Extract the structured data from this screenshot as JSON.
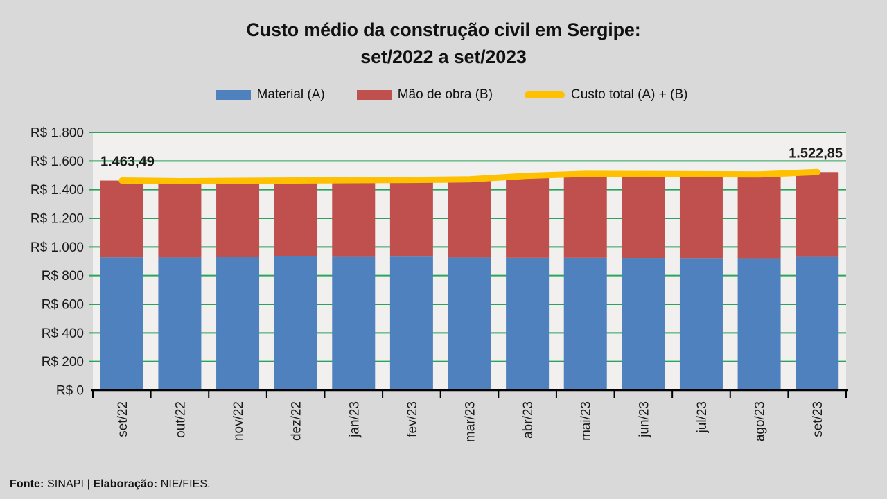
{
  "title": {
    "line1": "Custo médio da construção civil em Sergipe:",
    "line2": "set/2022 a set/2023"
  },
  "legend": [
    {
      "label": "Material (A)",
      "color": "#4E81BD",
      "shape": "rect"
    },
    {
      "label": "Mão de obra (B)",
      "color": "#C0504D",
      "shape": "rect"
    },
    {
      "label": "Custo total (A) + (B)",
      "color": "#FFC000",
      "shape": "line"
    }
  ],
  "footer": {
    "segments": [
      {
        "text": "Fonte: ",
        "bold": true
      },
      {
        "text": "SINAPI | ",
        "bold": false
      },
      {
        "text": "Elaboração: ",
        "bold": true
      },
      {
        "text": "NIE/FIES.",
        "bold": false
      }
    ]
  },
  "colors": {
    "background": "#D9D9D9",
    "plot_background": "#F1F0EE",
    "gridline": "#2BA35C",
    "axis": "#000000",
    "text": "#1A1A1A",
    "material": "#4E81BD",
    "labor": "#C0504D",
    "total_line": "#FFC000"
  },
  "chart_data": {
    "type": "bar",
    "subtype": "stacked-bar-with-line",
    "title": "Custo médio da construção civil em Sergipe: set/2022 a set/2023",
    "categories": [
      "set/22",
      "out/22",
      "nov/22",
      "dez/22",
      "jan/23",
      "fev/23",
      "mar/23",
      "abr/23",
      "mai/23",
      "jun/23",
      "jul/23",
      "ago/23",
      "set/23"
    ],
    "series": [
      {
        "name": "Material (A)",
        "type": "bar",
        "color": "#4E81BD",
        "values": [
          928,
          927,
          929,
          936,
          931,
          933,
          927,
          925,
          925,
          924,
          923,
          922,
          931
        ]
      },
      {
        "name": "Mão de obra (B)",
        "type": "bar",
        "color": "#C0504D",
        "values": [
          535.49,
          532,
          532,
          528,
          535,
          535,
          545,
          572,
          585,
          585,
          585,
          584,
          591.85
        ]
      },
      {
        "name": "Custo total (A) + (B)",
        "type": "line",
        "color": "#FFC000",
        "values": [
          1463.49,
          1459,
          1461,
          1464,
          1466,
          1468,
          1472,
          1497,
          1510,
          1509,
          1508,
          1506,
          1522.85
        ]
      }
    ],
    "annotations": [
      {
        "text": "1.463,49",
        "value": 1463.49,
        "x_index": 0,
        "align": "left"
      },
      {
        "text": "1.522,85",
        "value": 1522.85,
        "x_index": 12,
        "align": "right"
      }
    ],
    "ylim": [
      0,
      1800
    ],
    "ytick_step": 200,
    "ytick_labels": [
      "R$ 0",
      "R$ 200",
      "R$ 400",
      "R$ 600",
      "R$ 800",
      "R$ 1.000",
      "R$ 1.200",
      "R$ 1.400",
      "R$ 1.600",
      "R$ 1.800"
    ],
    "currency_prefix": "R$",
    "grid": true,
    "legend_position": "top",
    "x_label_rotation": -90
  }
}
